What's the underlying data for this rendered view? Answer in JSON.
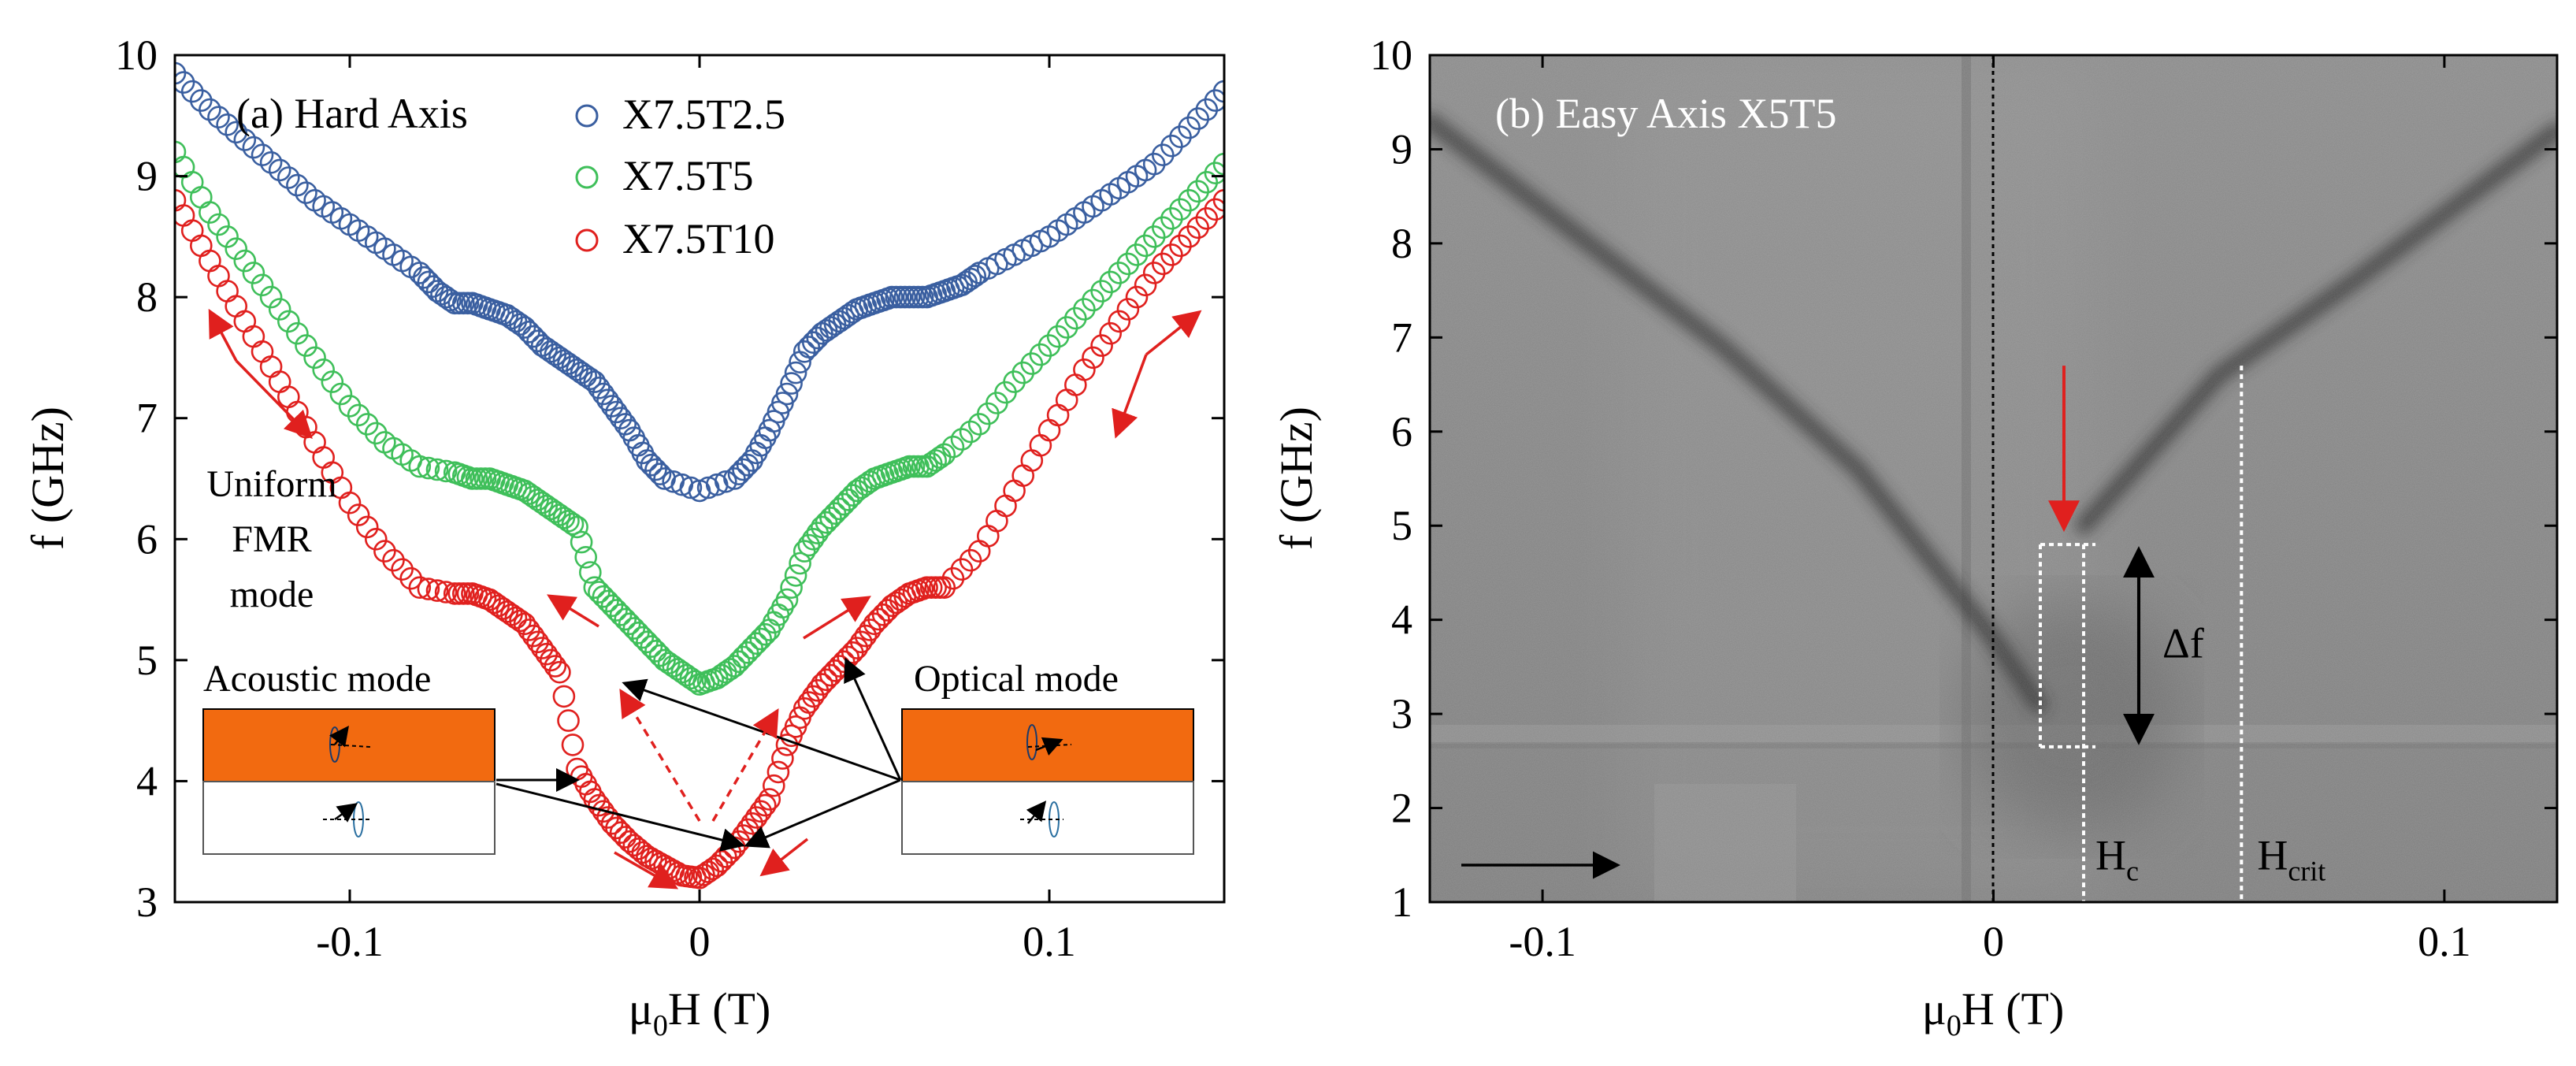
{
  "colors": {
    "blue": "#3a5fa0",
    "green": "#3fbf5a",
    "red": "#e0201e",
    "orange": "#f26a10",
    "black": "#000000",
    "white": "#ffffff"
  },
  "chart_data": [
    {
      "type": "scatter",
      "panel_label": "(a) Hard Axis",
      "title": "",
      "xlabel_main": "μ",
      "xlabel_sub": "0",
      "xlabel_tail": "H (T)",
      "ylabel": "f (GHz)",
      "xlim": [
        -0.15,
        0.15
      ],
      "ylim": [
        3,
        10
      ],
      "x_ticks": [
        -0.1,
        0,
        0.1
      ],
      "x_tick_labels": [
        "-0.1",
        "0",
        "0.1"
      ],
      "y_ticks": [
        3,
        4,
        5,
        6,
        7,
        8,
        9,
        10
      ],
      "y_tick_labels": [
        "3",
        "4",
        "5",
        "6",
        "7",
        "8",
        "9",
        "10"
      ],
      "legend_position": "top",
      "series": [
        {
          "name": "X7.5T2.5",
          "color": "#3a5fa0",
          "x": [
            -0.15,
            -0.14,
            -0.13,
            -0.12,
            -0.11,
            -0.1,
            -0.09,
            -0.08,
            -0.075,
            -0.07,
            -0.065,
            -0.06,
            -0.055,
            -0.05,
            -0.045,
            -0.04,
            -0.035,
            -0.03,
            -0.025,
            -0.02,
            -0.015,
            -0.01,
            0,
            0.01,
            0.015,
            0.02,
            0.025,
            0.03,
            0.035,
            0.04,
            0.045,
            0.05,
            0.055,
            0.06,
            0.065,
            0.07,
            0.075,
            0.08,
            0.09,
            0.1,
            0.11,
            0.12,
            0.13,
            0.14,
            0.15
          ],
          "y": [
            9.85,
            9.55,
            9.3,
            9.05,
            8.8,
            8.6,
            8.4,
            8.2,
            8.05,
            7.95,
            7.95,
            7.9,
            7.85,
            7.75,
            7.6,
            7.5,
            7.4,
            7.3,
            7.1,
            6.9,
            6.65,
            6.5,
            6.4,
            6.5,
            6.65,
            6.9,
            7.2,
            7.55,
            7.7,
            7.8,
            7.9,
            7.95,
            8.0,
            8.0,
            8.0,
            8.05,
            8.1,
            8.2,
            8.35,
            8.5,
            8.7,
            8.9,
            9.1,
            9.4,
            9.7
          ]
        },
        {
          "name": "X7.5T5",
          "color": "#3fbf5a",
          "x": [
            -0.15,
            -0.14,
            -0.13,
            -0.12,
            -0.11,
            -0.1,
            -0.09,
            -0.08,
            -0.07,
            -0.065,
            -0.06,
            -0.055,
            -0.05,
            -0.045,
            -0.04,
            -0.035,
            -0.03,
            -0.025,
            -0.02,
            -0.015,
            -0.01,
            -0.005,
            0,
            0.005,
            0.01,
            0.015,
            0.02,
            0.025,
            0.03,
            0.035,
            0.04,
            0.045,
            0.05,
            0.055,
            0.06,
            0.065,
            0.07,
            0.08,
            0.09,
            0.1,
            0.11,
            0.12,
            0.13,
            0.14,
            0.15
          ],
          "y": [
            9.2,
            8.7,
            8.3,
            7.9,
            7.5,
            7.1,
            6.8,
            6.6,
            6.55,
            6.5,
            6.5,
            6.45,
            6.4,
            6.3,
            6.2,
            6.1,
            5.6,
            5.45,
            5.3,
            5.15,
            5.0,
            4.9,
            4.8,
            4.85,
            4.95,
            5.1,
            5.25,
            5.5,
            5.9,
            6.1,
            6.25,
            6.4,
            6.5,
            6.55,
            6.6,
            6.6,
            6.7,
            6.95,
            7.3,
            7.6,
            7.9,
            8.2,
            8.5,
            8.8,
            9.1
          ]
        },
        {
          "name": "X7.5T10",
          "color": "#e0201e",
          "x": [
            -0.15,
            -0.14,
            -0.13,
            -0.12,
            -0.11,
            -0.1,
            -0.09,
            -0.08,
            -0.07,
            -0.065,
            -0.06,
            -0.055,
            -0.05,
            -0.045,
            -0.04,
            -0.035,
            -0.03,
            -0.025,
            -0.02,
            -0.015,
            -0.01,
            -0.005,
            0,
            0.005,
            0.01,
            0.015,
            0.02,
            0.025,
            0.03,
            0.035,
            0.04,
            0.045,
            0.05,
            0.055,
            0.06,
            0.065,
            0.07,
            0.08,
            0.09,
            0.1,
            0.11,
            0.12,
            0.13,
            0.14,
            0.15
          ],
          "y": [
            8.8,
            8.3,
            7.8,
            7.3,
            6.8,
            6.3,
            5.9,
            5.6,
            5.55,
            5.55,
            5.5,
            5.4,
            5.3,
            5.1,
            4.9,
            4.1,
            3.85,
            3.65,
            3.5,
            3.38,
            3.3,
            3.22,
            3.2,
            3.3,
            3.45,
            3.65,
            3.85,
            4.3,
            4.6,
            4.8,
            4.95,
            5.1,
            5.3,
            5.45,
            5.55,
            5.6,
            5.6,
            5.9,
            6.4,
            6.9,
            7.4,
            7.8,
            8.2,
            8.5,
            8.8
          ]
        }
      ],
      "annotations": {
        "uniform_line1": "Uniform",
        "uniform_line2": "FMR",
        "uniform_line3": "mode",
        "acoustic": "Acoustic mode",
        "optical": "Optical mode"
      }
    },
    {
      "type": "heatmap",
      "panel_label": "(b) Easy Axis  X5T5",
      "title": "",
      "xlabel_main": "μ",
      "xlabel_sub": "0",
      "xlabel_tail": "H (T)",
      "ylabel": "f (GHz)",
      "xlim": [
        -0.125,
        0.125
      ],
      "ylim": [
        1,
        10
      ],
      "x_ticks": [
        -0.1,
        0,
        0.1
      ],
      "x_tick_labels": [
        "-0.1",
        "0",
        "0.1"
      ],
      "y_ticks": [
        1,
        2,
        3,
        4,
        5,
        6,
        7,
        8,
        9,
        10
      ],
      "y_tick_labels": [
        "1",
        "2",
        "3",
        "4",
        "5",
        "6",
        "7",
        "8",
        "9",
        "10"
      ],
      "resonance_left": {
        "x": [
          -0.125,
          -0.06,
          -0.03,
          0.0,
          0.01
        ],
        "y": [
          9.3,
          6.9,
          5.6,
          3.8,
          3.1
        ]
      },
      "resonance_right": {
        "x": [
          0.02,
          0.05,
          0.08,
          0.125
        ],
        "y": [
          5.0,
          6.6,
          7.6,
          9.2
        ]
      },
      "hc": 0.02,
      "hcrit": 0.055,
      "delta_f_range": [
        2.65,
        4.8
      ],
      "labels": {
        "delta_f": "Δf",
        "hc_main": "H",
        "hc_sub": "c",
        "hcrit_main": "H",
        "hcrit_sub": "crit"
      }
    }
  ]
}
